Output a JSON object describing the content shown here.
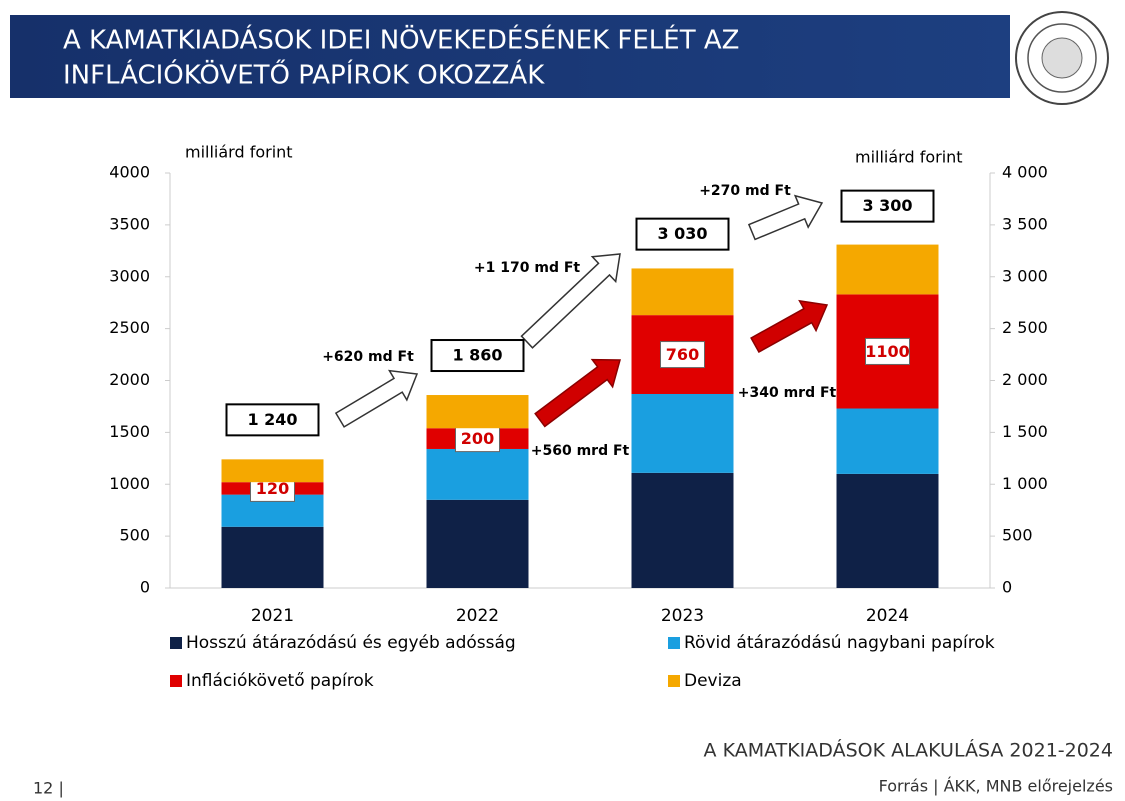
{
  "header": {
    "title_lines": [
      "A KAMATKIADÁSOK IDEI NÖVEKEDÉSÉNEK FELÉT AZ",
      "INFLÁCIÓKÖVETŐ PAPÍROK OKOZZÁK"
    ]
  },
  "chart_data": {
    "type": "stacked_bar",
    "y_label": "milliárd forint",
    "y2_label": "milliárd forint",
    "categories": [
      "2021",
      "2022",
      "2023",
      "2024"
    ],
    "series": [
      {
        "name": "Hosszú átárazódású és egyéb adósság",
        "color": "#0f2147",
        "values": [
          590,
          850,
          1110,
          1100
        ]
      },
      {
        "name": "Rövid átárazódású nagybani papírok",
        "color": "#1a9fe0",
        "values": [
          310,
          490,
          760,
          630
        ]
      },
      {
        "name": "Inflációkövető papírok",
        "color": "#e00000",
        "values": [
          120,
          200,
          760,
          1100
        ]
      },
      {
        "name": "Deviza",
        "color": "#f5a800",
        "values": [
          220,
          320,
          450,
          480
        ]
      }
    ],
    "totals": {
      "values": [
        1240,
        1860,
        3030,
        3300
      ],
      "value_labels": [
        "1 240",
        "1 860",
        "3 030",
        "3 300"
      ]
    },
    "annotations": [
      "+620 md Ft",
      "+1 170 md Ft",
      "+270 md Ft",
      "+560 mrd Ft",
      "+340 mrd Ft"
    ],
    "ylim": [
      0,
      4000
    ],
    "yticks": [
      0,
      500,
      1000,
      1500,
      2000,
      2500,
      3000,
      3500,
      4000
    ],
    "y2lim": [
      0,
      4000
    ],
    "y2ticks": [
      0,
      500,
      {
        "value": 1000,
        "label": "1 000"
      },
      {
        "value": 1500,
        "label": "1 500"
      },
      {
        "value": 2000,
        "label": "2 000"
      },
      {
        "value": 2500,
        "label": "2 500"
      },
      {
        "value": 3000,
        "label": "3 000"
      },
      {
        "value": 3500,
        "label": "3 500"
      },
      {
        "value": 4000,
        "label": "4 000"
      }
    ],
    "grid": false
  },
  "footer": {
    "subtitle": "A KAMATKIADÁSOK ALAKULÁSA 2021-2024",
    "source": "Forrás  |  ÁKK, MNB előrejelzés",
    "page": "12 |"
  }
}
